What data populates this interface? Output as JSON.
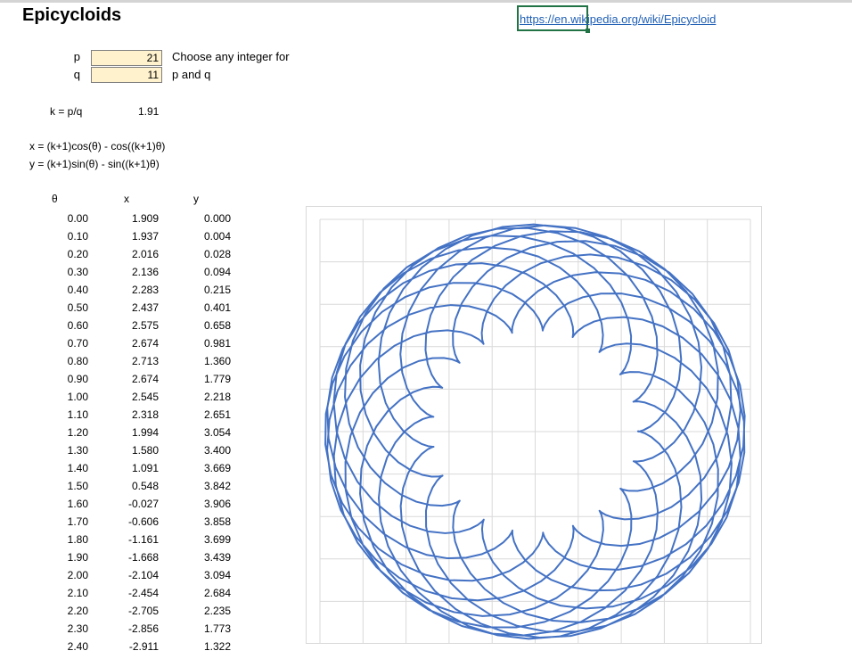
{
  "title": "Epicycloids",
  "link": "https://en.wikipedia.org/wiki/Epicycloid",
  "params": [
    {
      "label": "p",
      "value": "21"
    },
    {
      "label": "q",
      "value": "11"
    }
  ],
  "note_line1": "Choose any integer for",
  "note_line2": "p and q",
  "k_label": "k = p/q",
  "k_value": "1.91",
  "formula_x": "x = (k+1)cos(θ) - cos((k+1)θ)",
  "formula_y": "y = (k+1)sin(θ) - sin((k+1)θ)",
  "columns": {
    "theta": "θ",
    "x": "x",
    "y": "y"
  },
  "rows": [
    {
      "theta": "0.00",
      "x": "1.909",
      "y": "0.000"
    },
    {
      "theta": "0.10",
      "x": "1.937",
      "y": "0.004"
    },
    {
      "theta": "0.20",
      "x": "2.016",
      "y": "0.028"
    },
    {
      "theta": "0.30",
      "x": "2.136",
      "y": "0.094"
    },
    {
      "theta": "0.40",
      "x": "2.283",
      "y": "0.215"
    },
    {
      "theta": "0.50",
      "x": "2.437",
      "y": "0.401"
    },
    {
      "theta": "0.60",
      "x": "2.575",
      "y": "0.658"
    },
    {
      "theta": "0.70",
      "x": "2.674",
      "y": "0.981"
    },
    {
      "theta": "0.80",
      "x": "2.713",
      "y": "1.360"
    },
    {
      "theta": "0.90",
      "x": "2.674",
      "y": "1.779"
    },
    {
      "theta": "1.00",
      "x": "2.545",
      "y": "2.218"
    },
    {
      "theta": "1.10",
      "x": "2.318",
      "y": "2.651"
    },
    {
      "theta": "1.20",
      "x": "1.994",
      "y": "3.054"
    },
    {
      "theta": "1.30",
      "x": "1.580",
      "y": "3.400"
    },
    {
      "theta": "1.40",
      "x": "1.091",
      "y": "3.669"
    },
    {
      "theta": "1.50",
      "x": "0.548",
      "y": "3.842"
    },
    {
      "theta": "1.60",
      "x": "-0.027",
      "y": "3.906"
    },
    {
      "theta": "1.70",
      "x": "-0.606",
      "y": "3.858"
    },
    {
      "theta": "1.80",
      "x": "-1.161",
      "y": "3.699"
    },
    {
      "theta": "1.90",
      "x": "-1.668",
      "y": "3.439"
    },
    {
      "theta": "2.00",
      "x": "-2.104",
      "y": "3.094"
    },
    {
      "theta": "2.10",
      "x": "-2.454",
      "y": "2.684"
    },
    {
      "theta": "2.20",
      "x": "-2.705",
      "y": "2.235"
    },
    {
      "theta": "2.30",
      "x": "-2.856",
      "y": "1.773"
    },
    {
      "theta": "2.40",
      "x": "-2.911",
      "y": "1.322"
    }
  ],
  "chart_data": {
    "type": "line",
    "curve": "epicycloid",
    "k": 1.909,
    "theta_range": [
      0,
      69.2
    ],
    "series": [
      {
        "color": "#4472c4"
      }
    ],
    "xlim": [
      -4,
      4
    ],
    "ylim": [
      -4,
      4
    ],
    "grid": true,
    "legend": "none"
  }
}
